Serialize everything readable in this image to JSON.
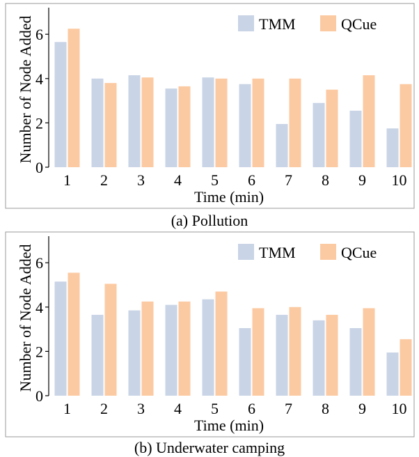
{
  "colors": {
    "tmm": "#c9d4e6",
    "qcue": "#fccaa2",
    "frame": "#9a9a9a"
  },
  "chart_data": [
    {
      "type": "bar",
      "caption": "(a) Pollution",
      "xlabel": "Time (min)",
      "ylabel": "Number of Node Added",
      "categories": [
        "1",
        "2",
        "3",
        "4",
        "5",
        "6",
        "7",
        "8",
        "9",
        "10"
      ],
      "yticks": [
        "0",
        "2",
        "4",
        "6"
      ],
      "ylim": [
        0,
        7.2
      ],
      "legend_position": "top-right",
      "series": [
        {
          "name": "TMM",
          "values": [
            5.65,
            4.0,
            4.15,
            3.55,
            4.05,
            3.75,
            1.95,
            2.9,
            2.55,
            1.75
          ]
        },
        {
          "name": "QCue",
          "values": [
            6.25,
            3.8,
            4.05,
            3.65,
            4.0,
            4.0,
            4.0,
            3.5,
            4.15,
            3.75
          ]
        }
      ]
    },
    {
      "type": "bar",
      "caption": "(b) Underwater camping",
      "xlabel": "Time (min)",
      "ylabel": "Number of Node Added",
      "categories": [
        "1",
        "2",
        "3",
        "4",
        "5",
        "6",
        "7",
        "8",
        "9",
        "10"
      ],
      "yticks": [
        "0",
        "2",
        "4",
        "6"
      ],
      "ylim": [
        0,
        7.2
      ],
      "legend_position": "top-right",
      "series": [
        {
          "name": "TMM",
          "values": [
            5.15,
            3.65,
            3.85,
            4.1,
            4.35,
            3.05,
            3.65,
            3.4,
            3.05,
            1.95
          ]
        },
        {
          "name": "QCue",
          "values": [
            5.55,
            5.05,
            4.25,
            4.25,
            4.7,
            3.95,
            4.0,
            3.65,
            3.95,
            2.55
          ]
        }
      ]
    }
  ]
}
